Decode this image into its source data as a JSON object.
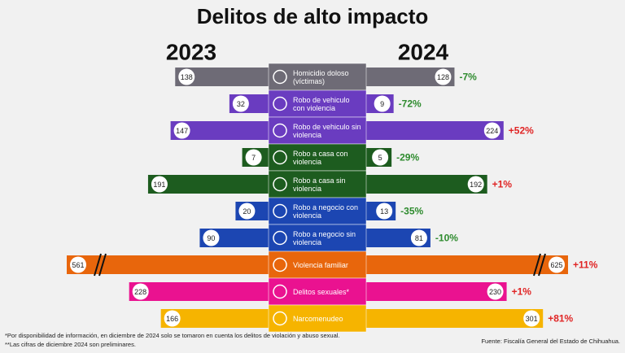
{
  "chart_data": {
    "type": "butterfly",
    "title": "Delitos de alto impacto",
    "categories": [
      "Homicidio doloso (víctimas)",
      "Robo de vehiculo con violencia",
      "Robo de vehiculo sin violencia",
      "Robo a casa con violencia",
      "Robo a casa sin violencia",
      "Robo a negocio con violencia",
      "Robo a negocio sin violencia",
      "Violencia familiar",
      "Delitos sexuales*",
      "Narcomenudeo"
    ],
    "colors": [
      "#6e6b76",
      "#6a3cc0",
      "#6a3cc0",
      "#1d5c1f",
      "#1d5c1f",
      "#1c46b2",
      "#1c46b2",
      "#e8660c",
      "#ea1290",
      "#f6b400"
    ],
    "series": [
      {
        "name": "2023",
        "values": [
          138,
          32,
          147,
          7,
          191,
          20,
          90,
          561,
          228,
          166
        ]
      },
      {
        "name": "2024",
        "values": [
          128,
          9,
          224,
          5,
          192,
          13,
          81,
          625,
          230,
          301
        ]
      }
    ],
    "change": {
      "values": [
        -7,
        -72,
        52,
        -29,
        1,
        -35,
        -10,
        11,
        1,
        81
      ],
      "value_labels": [
        "-7%",
        "-72%",
        "+52%",
        "-29%",
        "+1%",
        "-35%",
        "-10%",
        "+11%",
        "+1%",
        "+81%"
      ],
      "decrease_color": "#2e8b2e",
      "increase_color": "#e02424"
    },
    "xlim": [
      0,
      350
    ],
    "footnotes": [
      "*Por disponibilidad de información, en diciembre de 2024 solo se tomaron en cuenta los delitos de violación y abuso sexual.",
      "**Las cifras de diciembre 2024 son preliminares."
    ],
    "source": "Fuente: Fiscalía General del Estado de Chihuahua."
  }
}
